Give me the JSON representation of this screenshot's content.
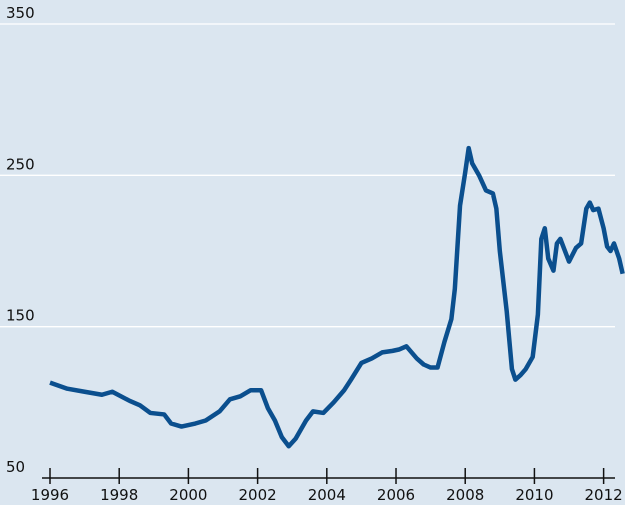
{
  "chart_data": {
    "type": "line",
    "x": [
      1996.0,
      1996.5,
      1997.0,
      1997.5,
      1997.8,
      1998.3,
      1998.6,
      1998.9,
      1999.3,
      1999.5,
      1999.8,
      2000.2,
      2000.5,
      2000.9,
      2001.2,
      2001.5,
      2001.8,
      2002.1,
      2002.3,
      2002.5,
      2002.7,
      2002.9,
      2003.1,
      2003.4,
      2003.6,
      2003.9,
      2004.2,
      2004.5,
      2004.7,
      2005.0,
      2005.3,
      2005.6,
      2005.9,
      2006.1,
      2006.3,
      2006.6,
      2006.8,
      2007.0,
      2007.2,
      2007.4,
      2007.6,
      2007.7,
      2007.85,
      2008.0,
      2008.1,
      2008.2,
      2008.4,
      2008.6,
      2008.8,
      2008.9,
      2009.0,
      2009.2,
      2009.35,
      2009.45,
      2009.6,
      2009.75,
      2009.95,
      2010.1,
      2010.2,
      2010.3,
      2010.4,
      2010.55,
      2010.65,
      2010.75,
      2011.0,
      2011.2,
      2011.35,
      2011.5,
      2011.6,
      2011.7,
      2011.85,
      2012.0,
      2012.1,
      2012.2,
      2012.3,
      2012.45,
      2012.55
    ],
    "series": [
      {
        "color": "#0b4f8e",
        "values": [
          113,
          109,
          107,
          105,
          107,
          101,
          98,
          93,
          92,
          86,
          84,
          86,
          88,
          94,
          102,
          104,
          108,
          108,
          96,
          88,
          77,
          71,
          76,
          88,
          94,
          93,
          100,
          108,
          115,
          126,
          129,
          133,
          134,
          135,
          137,
          129,
          125,
          123,
          123,
          140,
          155,
          175,
          230,
          252,
          268,
          258,
          250,
          240,
          238,
          228,
          200,
          160,
          122,
          115,
          118,
          122,
          130,
          158,
          208,
          215,
          195,
          187,
          205,
          208,
          193,
          202,
          205,
          228,
          232,
          227,
          228,
          215,
          203,
          200,
          205,
          195,
          185
        ]
      }
    ],
    "xlim": [
      1996,
      2012.3
    ],
    "ylim": [
      50,
      350
    ],
    "xticks": [
      1996,
      1998,
      2000,
      2002,
      2004,
      2006,
      2008,
      2010,
      2012
    ],
    "yticks": [
      50,
      150,
      250,
      350
    ],
    "grid": true
  }
}
